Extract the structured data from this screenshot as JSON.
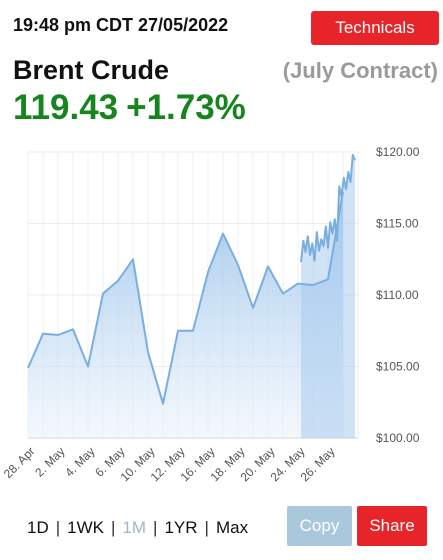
{
  "header": {
    "timestamp": "19:48 pm CDT 27/05/2022",
    "technicals_label": "Technicals"
  },
  "instrument": {
    "name": "Brent Crude",
    "contract": "(July Contract)",
    "price": "119.43",
    "change": "+1.73%"
  },
  "colors": {
    "accent_red": "#e8242b",
    "positive_green": "#16851e",
    "line_blue": "#7aaee0",
    "copy_button": "#a9c8dc"
  },
  "chart_data": {
    "type": "area",
    "x_tick_labels": [
      "28. Apr",
      "2. May",
      "4. May",
      "6. May",
      "10. May",
      "12. May",
      "16. May",
      "18. May",
      "20. May",
      "24. May",
      "26. May"
    ],
    "y_tick_labels": [
      "$120.00",
      "$115.00",
      "$110.00",
      "$105.00",
      "$100.00"
    ],
    "y_ticks": [
      120,
      115,
      110,
      105,
      100
    ],
    "ylim": [
      100,
      120
    ],
    "daily_series": {
      "x_index": [
        0,
        1,
        2,
        3,
        4,
        5,
        6,
        7,
        8,
        9,
        10,
        11,
        12,
        13,
        14,
        15,
        16,
        17,
        18,
        19,
        20,
        21
      ],
      "values": [
        104.9,
        107.3,
        107.2,
        107.6,
        105.0,
        110.1,
        111.0,
        112.5,
        106.0,
        102.4,
        107.5,
        107.5,
        111.6,
        114.3,
        112.1,
        109.1,
        112.0,
        110.1,
        110.8,
        110.7,
        111.1,
        117.2
      ]
    },
    "intraday_series": {
      "x_index": [
        18.2,
        18.35,
        18.5,
        18.65,
        18.8,
        18.95,
        19.1,
        19.25,
        19.4,
        19.55,
        19.7,
        19.85,
        20.0,
        20.15,
        20.3,
        20.45,
        20.6,
        20.75,
        20.9,
        21.05,
        21.2,
        21.35,
        21.5,
        21.65,
        21.8
      ],
      "values": [
        112.3,
        113.8,
        113.0,
        114.1,
        112.8,
        113.6,
        112.4,
        114.4,
        113.1,
        113.9,
        113.4,
        114.8,
        113.3,
        115.1,
        114.3,
        115.3,
        113.8,
        117.6,
        116.9,
        118.2,
        117.4,
        118.6,
        117.9,
        119.8,
        119.43
      ]
    },
    "grid": true,
    "legend": "none"
  },
  "range": {
    "options": [
      "1D",
      "1WK",
      "1M",
      "1YR",
      "Max"
    ],
    "active": "1M",
    "separator": "|"
  },
  "actions": {
    "copy_label": "Copy",
    "share_label": "Share"
  }
}
